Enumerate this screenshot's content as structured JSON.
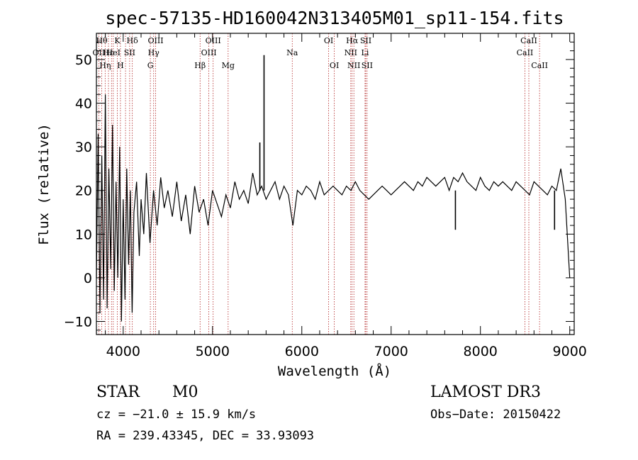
{
  "chart_data": {
    "type": "line",
    "title": "spec-57135-HD160042N313405M01_sp11-154.fits",
    "xlabel": "Wavelength (Å)",
    "ylabel": "Flux (relative)",
    "xlim": [
      3700,
      9050
    ],
    "ylim": [
      -13,
      56
    ],
    "xticks": [
      4000,
      5000,
      6000,
      7000,
      8000,
      9000
    ],
    "yticks": [
      -10,
      0,
      10,
      20,
      30,
      40,
      50
    ],
    "grid": false,
    "series": [
      {
        "color": "#000000",
        "x": [
          3700,
          3720,
          3740,
          3760,
          3780,
          3800,
          3820,
          3840,
          3860,
          3880,
          3900,
          3920,
          3940,
          3960,
          3980,
          4000,
          4020,
          4040,
          4060,
          4080,
          4100,
          4120,
          4150,
          4180,
          4200,
          4230,
          4260,
          4300,
          4340,
          4380,
          4420,
          4460,
          4500,
          4550,
          4600,
          4650,
          4700,
          4750,
          4800,
          4850,
          4900,
          4950,
          5000,
          5050,
          5100,
          5150,
          5200,
          5250,
          5300,
          5350,
          5400,
          5450,
          5500,
          5550,
          5600,
          5650,
          5700,
          5750,
          5800,
          5850,
          5900,
          5950,
          6000,
          6050,
          6100,
          6150,
          6200,
          6250,
          6300,
          6350,
          6400,
          6450,
          6500,
          6550,
          6600,
          6650,
          6700,
          6750,
          6800,
          6850,
          6900,
          6950,
          7000,
          7050,
          7100,
          7150,
          7200,
          7250,
          7300,
          7350,
          7400,
          7450,
          7500,
          7550,
          7600,
          7650,
          7700,
          7750,
          7800,
          7850,
          7900,
          7950,
          8000,
          8050,
          8100,
          8150,
          8200,
          8250,
          8300,
          8350,
          8400,
          8450,
          8500,
          8550,
          8600,
          8650,
          8700,
          8750,
          8800,
          8850,
          8900,
          8950,
          9000
        ],
        "y": [
          0,
          33,
          -8,
          28,
          -5,
          42,
          -7,
          25,
          2,
          35,
          -3,
          22,
          0,
          30,
          -10,
          18,
          -5,
          25,
          3,
          20,
          -8,
          15,
          22,
          5,
          18,
          10,
          24,
          8,
          20,
          12,
          23,
          16,
          20,
          14,
          22,
          13,
          19,
          10,
          21,
          15,
          18,
          12,
          20,
          17,
          14,
          19,
          16,
          22,
          18,
          20,
          17,
          24,
          19,
          21,
          18,
          20,
          22,
          18,
          21,
          19,
          12,
          20,
          19,
          21,
          20,
          18,
          22,
          19,
          20,
          21,
          20,
          19,
          21,
          20,
          22,
          20,
          19,
          18,
          19,
          20,
          21,
          20,
          19,
          20,
          21,
          22,
          21,
          20,
          22,
          21,
          23,
          22,
          21,
          22,
          23,
          20,
          23,
          22,
          24,
          22,
          21,
          20,
          23,
          21,
          20,
          22,
          21,
          22,
          21,
          20,
          22,
          21,
          20,
          19,
          22,
          21,
          20,
          19,
          21,
          20,
          25,
          18,
          0
        ]
      }
    ],
    "spikes": [
      {
        "x": 5577,
        "y": 51
      },
      {
        "x": 5530,
        "y": 31
      },
      {
        "x": 7720,
        "y": 11
      },
      {
        "x": 8830,
        "y": 11
      }
    ],
    "line_markers": [
      {
        "x": 3727,
        "label": "OII",
        "row": 1
      },
      {
        "x": 3760,
        "label": "Hθ",
        "row": 0
      },
      {
        "x": 3798,
        "label": "Hη",
        "row": 2
      },
      {
        "x": 3835,
        "label": "Hε",
        "row": 1
      },
      {
        "x": 3869,
        "label": "",
        "row": 2
      },
      {
        "x": 3889,
        "label": "HeI",
        "row": 1
      },
      {
        "x": 3934,
        "label": "K",
        "row": 0
      },
      {
        "x": 3969,
        "label": "H",
        "row": 2
      },
      {
        "x": 4026,
        "label": "",
        "row": 1
      },
      {
        "x": 4072,
        "label": "SII",
        "row": 1
      },
      {
        "x": 4102,
        "label": "Hδ",
        "row": 0
      },
      {
        "x": 4304,
        "label": "G",
        "row": 2
      },
      {
        "x": 4341,
        "label": "Hγ",
        "row": 1
      },
      {
        "x": 4363,
        "label": "OIII",
        "row": 0
      },
      {
        "x": 4861,
        "label": "Hβ",
        "row": 2
      },
      {
        "x": 4959,
        "label": "OIII",
        "row": 1
      },
      {
        "x": 5007,
        "label": "OIII",
        "row": 0
      },
      {
        "x": 5175,
        "label": "Mg",
        "row": 2
      },
      {
        "x": 5893,
        "label": "Na",
        "row": 1
      },
      {
        "x": 6300,
        "label": "OI",
        "row": 0
      },
      {
        "x": 6364,
        "label": "OI",
        "row": 2
      },
      {
        "x": 6548,
        "label": "NII",
        "row": 1
      },
      {
        "x": 6563,
        "label": "Hα",
        "row": 0
      },
      {
        "x": 6583,
        "label": "NII",
        "row": 2
      },
      {
        "x": 6708,
        "label": "Li",
        "row": 1
      },
      {
        "x": 6716,
        "label": "SII",
        "row": 0
      },
      {
        "x": 6731,
        "label": "SII",
        "row": 2
      },
      {
        "x": 8498,
        "label": "CaII",
        "row": 1
      },
      {
        "x": 8542,
        "label": "CaII",
        "row": 0
      },
      {
        "x": 8662,
        "label": "CaII",
        "row": 2
      }
    ]
  },
  "footer": {
    "object_class": "STAR",
    "subclass": "M0",
    "survey": "LAMOST DR3",
    "cz": "cz = −21.0 ± 15.9 km/s",
    "obs_date": "Obs−Date: 20150422",
    "coords": "RA = 239.43345, DEC =  33.93093"
  }
}
